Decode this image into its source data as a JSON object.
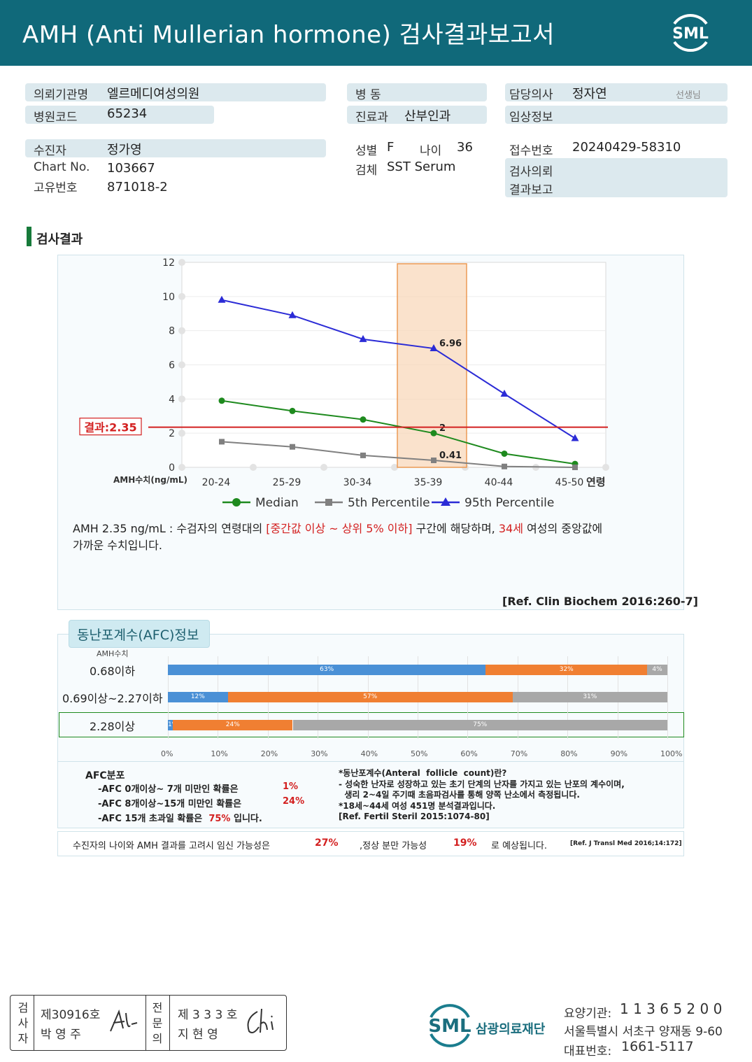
{
  "header": {
    "title": "AMH (Anti Mullerian hormone) 검사결과보고서",
    "logo_text": "SML"
  },
  "info": {
    "institution_label": "의뢰기관명",
    "institution": "엘르메디여성의원",
    "hospital_code_label": "병원코드",
    "hospital_code": "65234",
    "ward_label": "병 동",
    "ward": "",
    "dept_label": "진료과",
    "dept": "산부인과",
    "doctor_label": "담당의사",
    "doctor": "정자연",
    "doctor_suffix": "선생님",
    "clinical_label": "임상정보",
    "clinical": "",
    "patient_label": "수진자",
    "patient": "정가영",
    "chart_label": "Chart No.",
    "chart_no": "103667",
    "id_label": "고유번호",
    "id_no": "871018-2",
    "sex_label": "성별",
    "sex": "F",
    "age_label": "나이",
    "age": "36",
    "specimen_label": "검체",
    "specimen": "SST Serum",
    "receipt_label": "접수번호",
    "receipt_no": "20240429-58310",
    "request_label": "검사의뢰",
    "report_label": "결과보고"
  },
  "section_title": "검사결과",
  "chart_data": {
    "type": "line",
    "categories": [
      "20-24",
      "25-29",
      "30-34",
      "35-39",
      "40-44",
      "45-50"
    ],
    "xlabel": "연령",
    "ylabel": "AMH수치(ng/mL)",
    "ylim": [
      0,
      12
    ],
    "yticks": [
      "0",
      "2",
      "4",
      "6",
      "8",
      "10",
      "12"
    ],
    "series": [
      {
        "name": "Median",
        "color": "#1e8a1e",
        "marker": "circle",
        "values": [
          3.9,
          3.3,
          2.8,
          2.0,
          0.8,
          0.2
        ]
      },
      {
        "name": "5th Percentile",
        "color": "#808080",
        "marker": "square",
        "values": [
          1.5,
          1.2,
          0.7,
          0.41,
          0.05,
          0.0
        ]
      },
      {
        "name": "95th Percentile",
        "color": "#2b2bd6",
        "marker": "triangle",
        "values": [
          9.8,
          8.9,
          7.5,
          6.96,
          4.3,
          1.7
        ]
      }
    ],
    "highlight_category": "35-39",
    "result_line": {
      "value": 2.35,
      "label": "결과:2.35",
      "color": "#d32020"
    },
    "data_labels": {
      "median": "2",
      "p5": "0.41",
      "p95": "6.96"
    }
  },
  "result_text": {
    "p1": "AMH  2.35 ng/mL : 수검자의 연령대의 ",
    "p2": "[중간값 이상 ~ 상위 5% 이하]",
    "p3": " 구간에 해당하며, ",
    "p4": "34세",
    "p5": " 여성의 중앙값에",
    "p6": "가까운 수치입니다.",
    "ref": "[Ref. Clin Biochem 2016:260-7]"
  },
  "afc": {
    "title": "동난포계수(AFC)정보",
    "amh_label": "AMH수치",
    "rows": [
      {
        "label": "0.68이하",
        "segments": [
          {
            "pct": 63,
            "text": "63%",
            "color": "#4a90d6"
          },
          {
            "pct": 32,
            "text": "32%",
            "color": "#f07f32"
          },
          {
            "pct": 4,
            "text": "4%",
            "color": "#a8a8a8"
          }
        ]
      },
      {
        "label": "0.69이상~2.27이하",
        "segments": [
          {
            "pct": 12,
            "text": "12%",
            "color": "#4a90d6"
          },
          {
            "pct": 57,
            "text": "57%",
            "color": "#f07f32"
          },
          {
            "pct": 31,
            "text": "31%",
            "color": "#a8a8a8"
          }
        ]
      },
      {
        "label": "2.28이상",
        "segments": [
          {
            "pct": 1,
            "text": "1%",
            "color": "#4a90d6"
          },
          {
            "pct": 24,
            "text": "24%",
            "color": "#f07f32"
          },
          {
            "pct": 75,
            "text": "75%",
            "color": "#a8a8a8"
          }
        ]
      }
    ],
    "axis_ticks": [
      "0%",
      "10%",
      "20%",
      "30%",
      "40%",
      "50%",
      "60%",
      "70%",
      "80%",
      "90%",
      "100%"
    ],
    "dist_title": "AFC분포",
    "dist": [
      {
        "text": "-AFC  0개이상~ 7개 미만인 확률은",
        "pct": "1%",
        "tail": ""
      },
      {
        "text": "-AFC  8개이상~15개 미만인 확률은",
        "pct": "24%",
        "tail": ""
      },
      {
        "text": "-AFC  15개 초과일 확률은",
        "pct": "75%",
        "tail": "입니다."
      }
    ],
    "def_lines": [
      "*동난포계수(Anteral  follicle  count)란?",
      "- 성숙한 난자로 성장하고 있는 초기 단계의 난자를 가지고 있는 난포의 계수이며,",
      "  생리 2~4일 주기때 초음파검사를 통해 양쪽 난소에서 측정됩니다.",
      "*18세~44세 여성 451명 분석결과입니다.",
      "[Ref. Fertil Steril 2015:1074-80]"
    ]
  },
  "pregnancy": {
    "t1": "수진자의  나이와 AMH 결과를 고려시 임신 가능성은",
    "v1": "27%",
    "t2": ",정상 분만 가능성",
    "v2": "19%",
    "t3": "로 예상됩니다.",
    "ref": "[Ref. J Transl Med 2016;14:172]"
  },
  "footer": {
    "inspector_label": "검사자",
    "inspector_no": "제30916호",
    "inspector_name": "박 영 주",
    "specialist_label": "전문의",
    "specialist_no": "제 3 3 3 호",
    "specialist_name": "지 현 영",
    "org_name": "삼광의료재단",
    "logo_text": "SML",
    "care_label": "요양기관:",
    "care_no": "1 1 3 6 5 2 0 0",
    "address": "서울특별시 서초구 양재동 9-60",
    "phone_label": "대표번호:",
    "phone": "1661-5117"
  }
}
